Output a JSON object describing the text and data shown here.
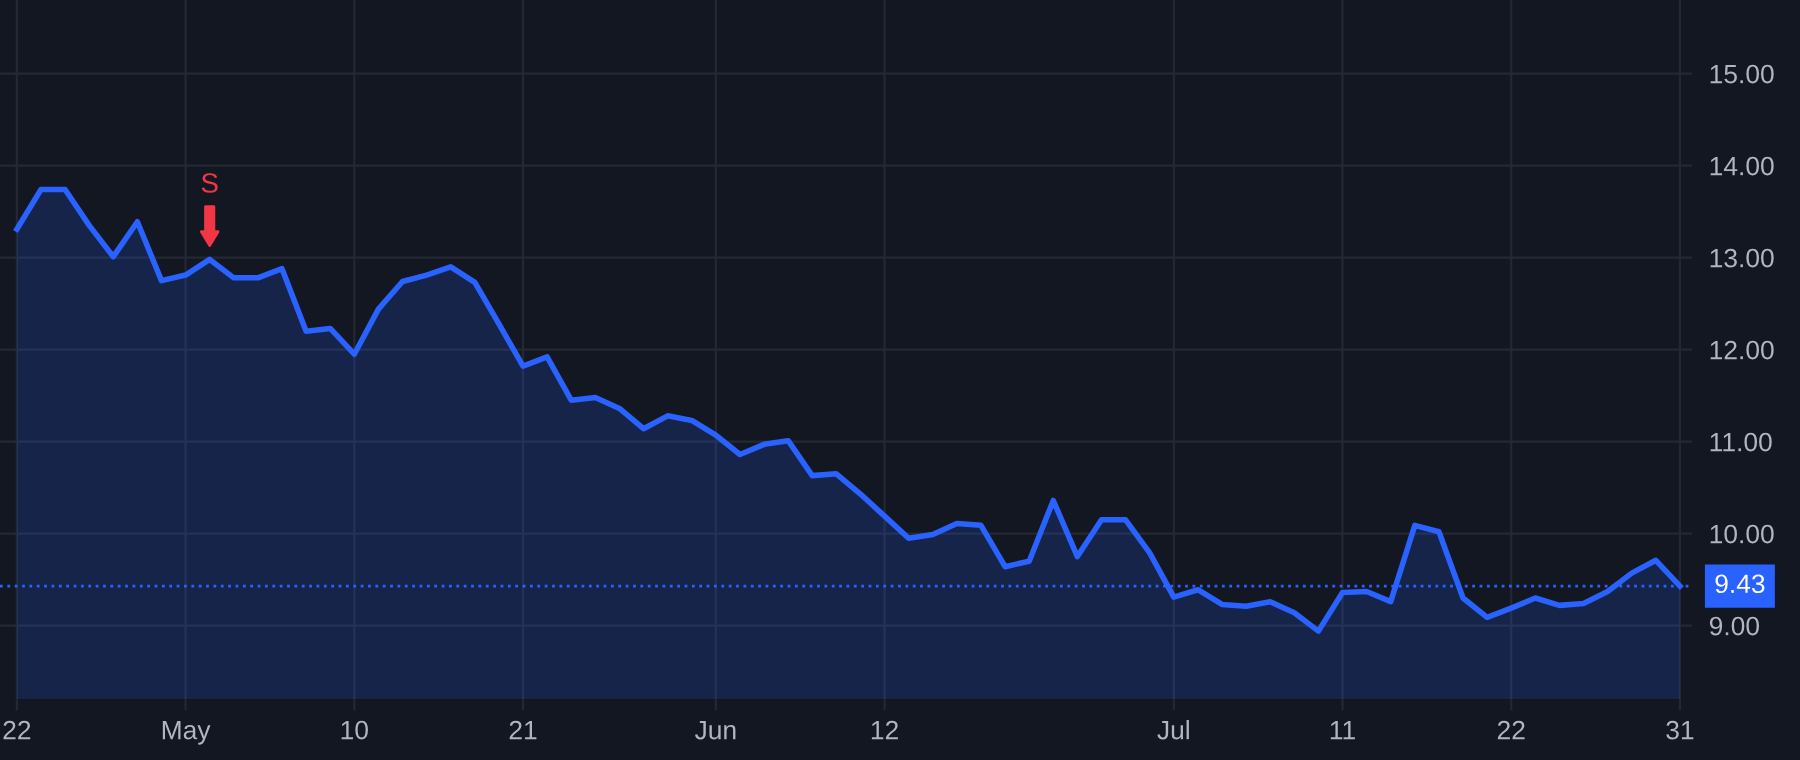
{
  "chart_data": {
    "type": "area",
    "categories": [
      "22",
      null,
      null,
      null,
      null,
      null,
      null,
      "May",
      null,
      null,
      null,
      null,
      null,
      null,
      "10",
      null,
      null,
      null,
      null,
      null,
      null,
      "21",
      null,
      null,
      null,
      null,
      null,
      null,
      null,
      "Jun",
      null,
      null,
      null,
      null,
      null,
      null,
      "12",
      null,
      null,
      null,
      null,
      null,
      null,
      null,
      null,
      null,
      null,
      null,
      "Jul",
      null,
      null,
      null,
      null,
      null,
      null,
      "11",
      null,
      null,
      null,
      null,
      null,
      null,
      "22",
      null,
      null,
      null,
      null,
      null,
      null,
      "31"
    ],
    "series": [
      {
        "color": "#2962ff",
        "values": [
          13.31,
          13.74,
          13.74,
          13.35,
          13.01,
          13.39,
          12.75,
          12.81,
          12.98,
          12.78,
          12.78,
          12.88,
          12.2,
          12.23,
          11.95,
          12.44,
          12.74,
          12.81,
          12.9,
          12.73,
          12.28,
          11.82,
          11.92,
          11.45,
          11.48,
          11.36,
          11.14,
          11.28,
          11.23,
          11.07,
          10.86,
          10.97,
          11.01,
          10.63,
          10.65,
          10.43,
          10.19,
          9.95,
          9.99,
          10.11,
          10.09,
          9.64,
          9.7,
          10.36,
          9.75,
          10.15,
          10.15,
          9.79,
          9.31,
          9.39,
          9.23,
          9.21,
          9.26,
          9.14,
          8.94,
          9.36,
          9.37,
          9.26,
          10.09,
          10.02,
          9.3,
          9.09,
          9.19,
          9.3,
          9.22,
          9.24,
          9.37,
          9.57,
          9.71,
          9.43
        ]
      }
    ],
    "ylim": [
      8.2,
      15.8
    ],
    "yticks": [
      {
        "value": 9,
        "label": "9.00"
      },
      {
        "value": 10,
        "label": "10.00"
      },
      {
        "value": 11,
        "label": "11.00"
      },
      {
        "value": 12,
        "label": "12.00"
      },
      {
        "value": 13,
        "label": "13.00"
      },
      {
        "value": 14,
        "label": "14.00"
      },
      {
        "value": 15,
        "label": "15.00"
      }
    ],
    "ref_lines": [
      {
        "axis": "y",
        "value": 9.43,
        "label": "9.43",
        "color": "#2962ff",
        "line_style": "dotted"
      }
    ],
    "annotations": [
      {
        "text": "S",
        "y": 12.98
      }
    ],
    "grid": true,
    "legend": false
  }
}
